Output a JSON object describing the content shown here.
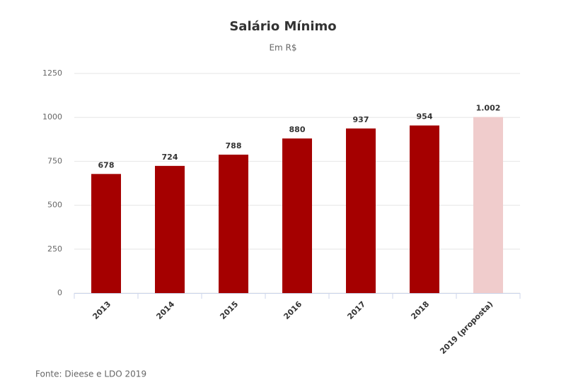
{
  "chart_data": {
    "type": "bar",
    "title": "Salário Mínimo",
    "subtitle": "Em R$",
    "categories": [
      "2013",
      "2014",
      "2015",
      "2016",
      "2017",
      "2018",
      "2019 (proposta)"
    ],
    "values": [
      678,
      724,
      788,
      880,
      937,
      954,
      1002
    ],
    "value_labels": [
      "678",
      "724",
      "788",
      "880",
      "937",
      "954",
      "1.002"
    ],
    "colors": [
      "#a50000",
      "#a50000",
      "#a50000",
      "#a50000",
      "#a50000",
      "#a50000",
      "#f0cccc"
    ],
    "ylim": [
      0,
      1250
    ],
    "yticks": [
      0,
      250,
      500,
      750,
      1000,
      1250
    ],
    "grid": true,
    "source": "Fonte: Dieese e LDO 2019"
  }
}
